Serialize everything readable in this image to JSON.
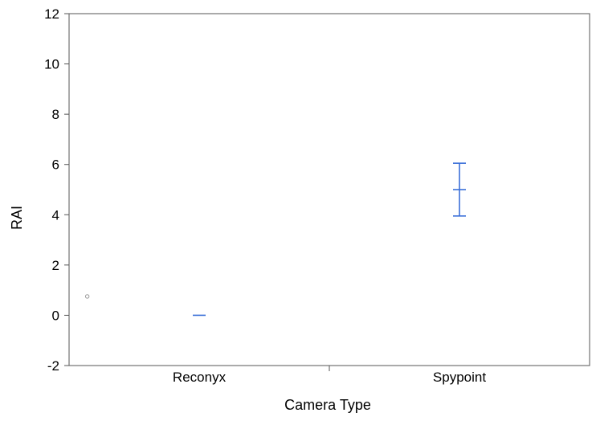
{
  "chart_data": {
    "type": "scatter",
    "xlabel": "Camera Type",
    "ylabel": "RAI",
    "categories": [
      "Reconyx",
      "Spypoint"
    ],
    "ylim": [
      -2,
      12
    ],
    "yticks": [
      -2,
      0,
      2,
      4,
      6,
      8,
      10,
      12
    ],
    "grid": false,
    "series": [
      {
        "color": "#3a6fd8",
        "points": [
          {
            "category": "Reconyx",
            "mean": 0,
            "lower": 0,
            "upper": 0
          },
          {
            "category": "Spypoint",
            "mean": 5,
            "lower": 3.95,
            "upper": 6.05
          }
        ]
      }
    ],
    "stray_marker": {
      "category_position": -0.45,
      "y": 0.75
    }
  }
}
